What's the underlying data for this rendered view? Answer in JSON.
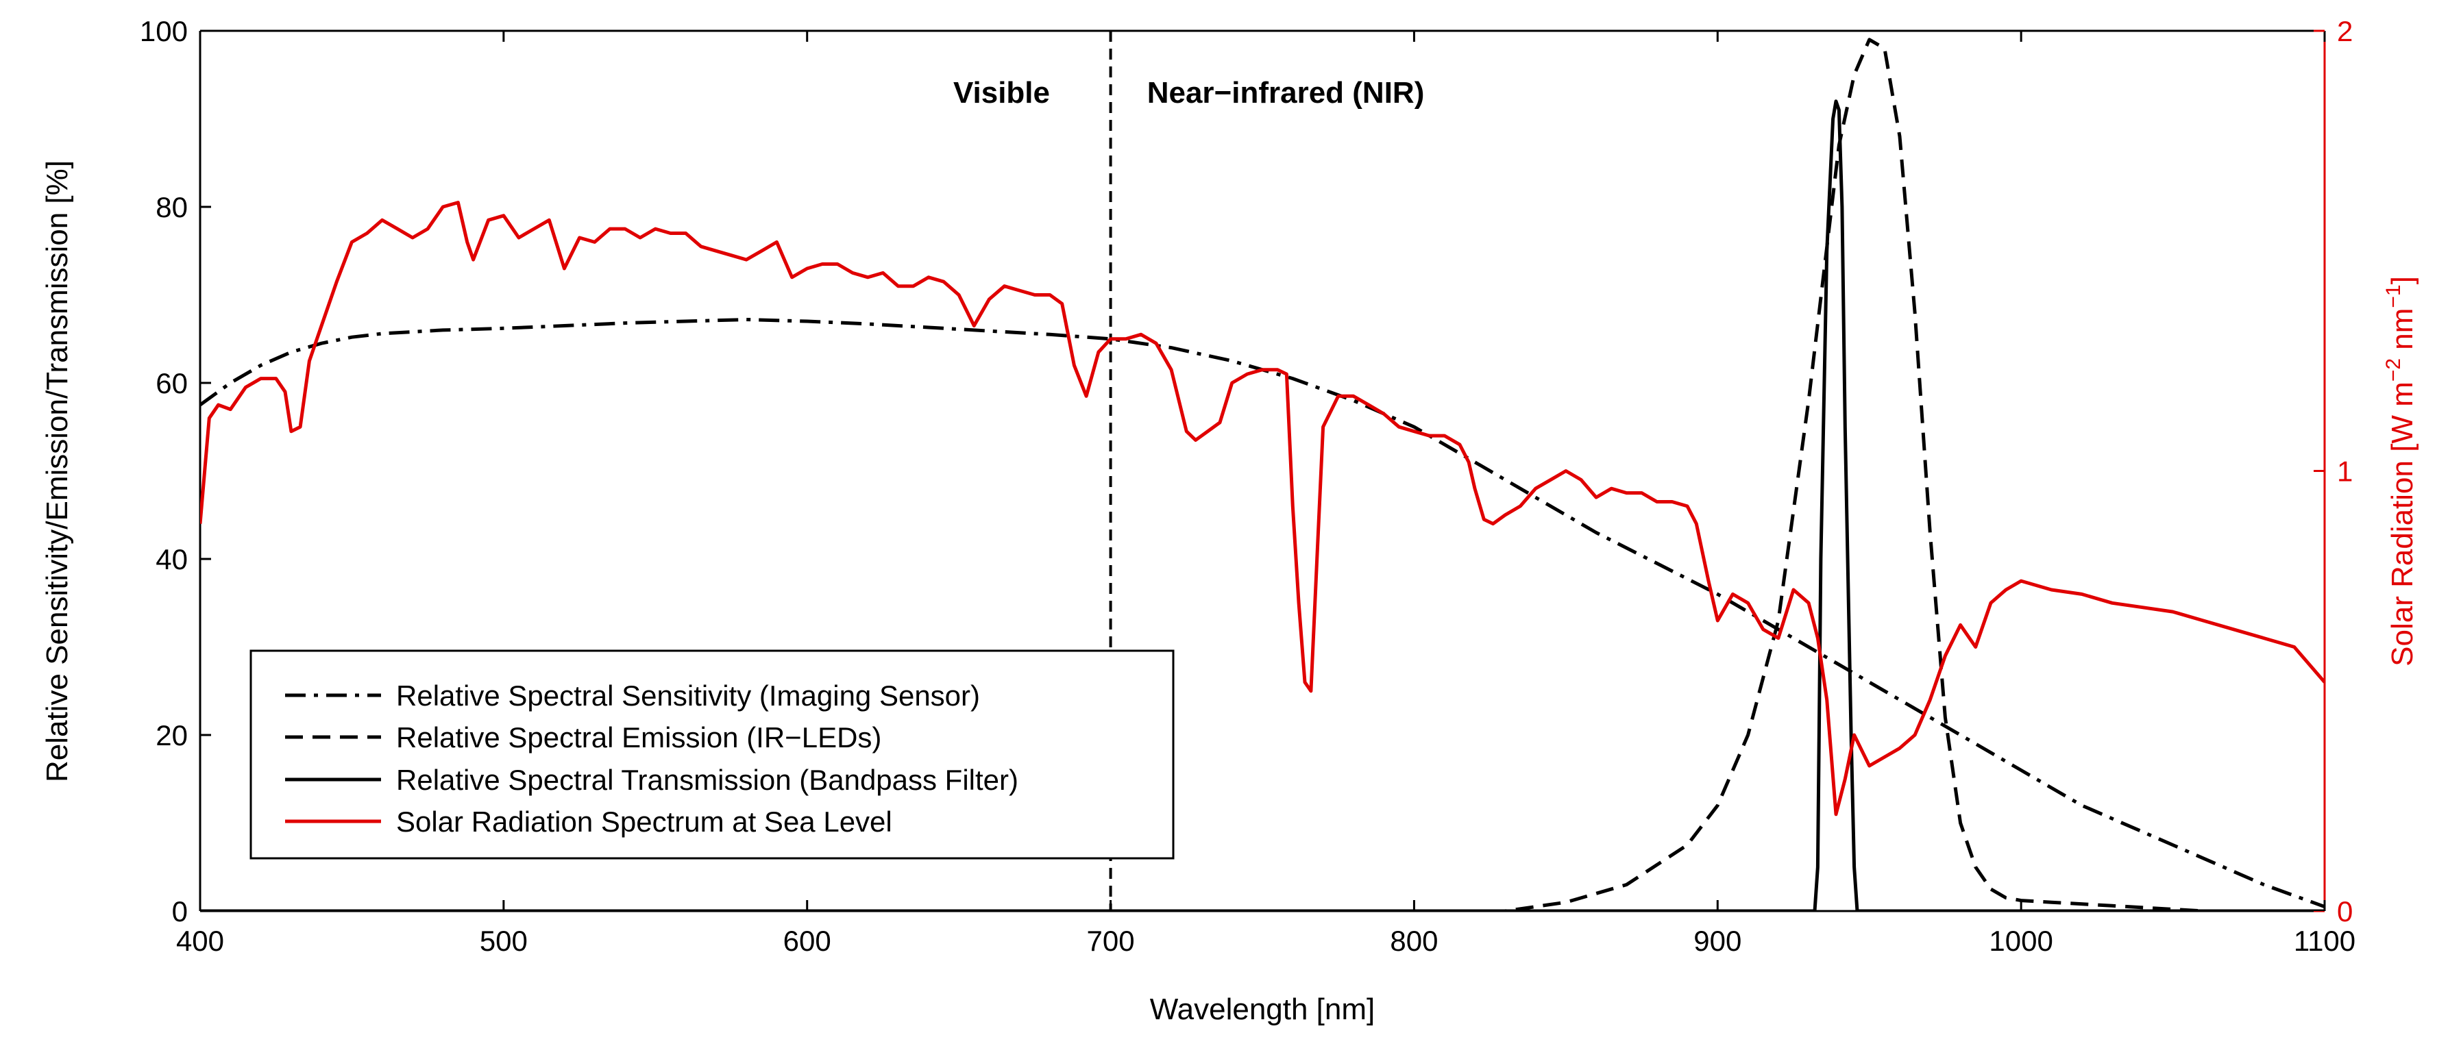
{
  "chart_data": {
    "type": "line",
    "title": "",
    "xlabel": "Wavelength [nm]",
    "ylabel": "Relative Sensitivity/Emission/Transmission [%]",
    "y2label": "Solar Radiation [W m-2 nm-1]",
    "y2label_parts": {
      "base": "Solar Radiation [W m",
      "sup1": "−2",
      "mid": " nm",
      "sup2": "−1",
      "end": "]"
    },
    "xlim": [
      400,
      1100
    ],
    "ylim": [
      0,
      100
    ],
    "y2lim": [
      0,
      2
    ],
    "xticks": [
      400,
      500,
      600,
      700,
      800,
      900,
      1000,
      1100
    ],
    "xtick_labels": [
      "400",
      "500",
      "600",
      "700",
      "800",
      "900",
      "1000",
      "1100"
    ],
    "yticks": [
      0,
      20,
      40,
      60,
      80,
      100
    ],
    "ytick_labels": [
      "0",
      "20",
      "40",
      "60",
      "80",
      "100"
    ],
    "y2ticks": [
      0,
      1,
      2
    ],
    "y2tick_labels": [
      "0",
      "1",
      "2"
    ],
    "grid": false,
    "legend_position": "bottom-left",
    "annotations": [
      {
        "text": "Visible",
        "x": 680,
        "y": 93,
        "anchor": "end"
      },
      {
        "text": "Near−infrared (NIR)",
        "x": 712,
        "y": 93,
        "anchor": "start"
      }
    ],
    "vline": {
      "x": 700,
      "style": "dashed"
    },
    "series": [
      {
        "name": "Relative Spectral Sensitivity (Imaging Sensor)",
        "axis": "left",
        "color": "#000000",
        "style": "dashdot",
        "x": [
          400,
          410,
          420,
          430,
          440,
          450,
          460,
          480,
          500,
          520,
          540,
          560,
          580,
          600,
          620,
          640,
          660,
          680,
          700,
          720,
          740,
          760,
          780,
          800,
          820,
          840,
          860,
          880,
          900,
          920,
          940,
          960,
          980,
          1000,
          1020,
          1040,
          1060,
          1080,
          1100
        ],
        "y": [
          57.5,
          60,
          62,
          63.5,
          64.5,
          65.2,
          65.6,
          66,
          66.2,
          66.5,
          66.8,
          67,
          67.2,
          67,
          66.7,
          66.3,
          65.9,
          65.5,
          65,
          64,
          62.5,
          60.5,
          58,
          55,
          51,
          47,
          43,
          39.5,
          36,
          32,
          28,
          24,
          20,
          16,
          12,
          9,
          6,
          3,
          0.5
        ]
      },
      {
        "name": "Relative Spectral Emission (IR−LEDs)",
        "axis": "left",
        "color": "#000000",
        "style": "dashed",
        "x": [
          400,
          830,
          850,
          870,
          890,
          900,
          910,
          920,
          930,
          940,
          945,
          950,
          955,
          960,
          965,
          970,
          975,
          980,
          985,
          990,
          995,
          1000,
          1010,
          1030,
          1050,
          1060
        ],
        "y": [
          0,
          0,
          1,
          3,
          7.5,
          12,
          20,
          33,
          58,
          87,
          95,
          99,
          98,
          88,
          68,
          43,
          22,
          10,
          5,
          2.5,
          1.5,
          1.2,
          1.0,
          0.6,
          0.2,
          0
        ]
      },
      {
        "name": "Relative Spectral Transmission (Bandpass Filter)",
        "axis": "left",
        "color": "#000000",
        "style": "solid",
        "x": [
          400,
          932,
          933,
          934,
          936,
          938,
          939,
          940,
          941,
          942,
          944,
          945,
          946,
          1100
        ],
        "y": [
          0,
          0,
          5,
          40,
          75,
          90,
          92,
          91,
          80,
          55,
          20,
          5,
          0,
          0
        ]
      },
      {
        "name": "Solar Radiation Spectrum at Sea Level",
        "axis": "right",
        "color": "#e00000",
        "style": "solid",
        "x": [
          400,
          403,
          406,
          410,
          415,
          420,
          425,
          428,
          430,
          433,
          436,
          440,
          445,
          450,
          455,
          460,
          465,
          470,
          475,
          480,
          485,
          488,
          490,
          495,
          500,
          505,
          510,
          515,
          520,
          525,
          530,
          535,
          540,
          545,
          550,
          555,
          560,
          565,
          570,
          575,
          580,
          585,
          590,
          595,
          600,
          605,
          610,
          615,
          620,
          625,
          630,
          635,
          640,
          645,
          650,
          655,
          660,
          665,
          670,
          675,
          680,
          684,
          688,
          692,
          696,
          700,
          705,
          710,
          715,
          720,
          725,
          728,
          732,
          736,
          740,
          745,
          750,
          755,
          758,
          760,
          762,
          764,
          766,
          768,
          770,
          775,
          780,
          785,
          790,
          795,
          800,
          805,
          810,
          815,
          818,
          820,
          823,
          826,
          830,
          835,
          840,
          845,
          850,
          855,
          860,
          865,
          870,
          875,
          880,
          885,
          890,
          893,
          897,
          900,
          905,
          910,
          915,
          920,
          925,
          930,
          933,
          936,
          939,
          942,
          945,
          950,
          955,
          960,
          965,
          970,
          975,
          980,
          985,
          990,
          995,
          1000,
          1010,
          1020,
          1030,
          1040,
          1050,
          1060,
          1070,
          1080,
          1090,
          1100
        ],
        "y": [
          0.88,
          1.12,
          1.15,
          1.14,
          1.19,
          1.21,
          1.21,
          1.18,
          1.09,
          1.1,
          1.25,
          1.33,
          1.43,
          1.52,
          1.54,
          1.57,
          1.55,
          1.53,
          1.55,
          1.6,
          1.61,
          1.52,
          1.48,
          1.57,
          1.58,
          1.53,
          1.55,
          1.57,
          1.46,
          1.53,
          1.52,
          1.55,
          1.55,
          1.53,
          1.55,
          1.54,
          1.54,
          1.51,
          1.5,
          1.49,
          1.48,
          1.5,
          1.52,
          1.44,
          1.46,
          1.47,
          1.47,
          1.45,
          1.44,
          1.45,
          1.42,
          1.42,
          1.44,
          1.43,
          1.4,
          1.33,
          1.39,
          1.42,
          1.41,
          1.4,
          1.4,
          1.38,
          1.24,
          1.17,
          1.27,
          1.3,
          1.3,
          1.31,
          1.29,
          1.23,
          1.09,
          1.07,
          1.09,
          1.11,
          1.2,
          1.22,
          1.23,
          1.23,
          1.22,
          0.92,
          0.7,
          0.52,
          0.5,
          0.8,
          1.1,
          1.17,
          1.17,
          1.15,
          1.13,
          1.1,
          1.09,
          1.08,
          1.08,
          1.06,
          1.02,
          0.96,
          0.89,
          0.88,
          0.9,
          0.92,
          0.96,
          0.98,
          1.0,
          0.98,
          0.94,
          0.96,
          0.95,
          0.95,
          0.93,
          0.93,
          0.92,
          0.88,
          0.75,
          0.66,
          0.72,
          0.7,
          0.64,
          0.62,
          0.73,
          0.7,
          0.62,
          0.48,
          0.22,
          0.3,
          0.4,
          0.33,
          0.35,
          0.37,
          0.4,
          0.48,
          0.58,
          0.65,
          0.6,
          0.7,
          0.73,
          0.75,
          0.73,
          0.72,
          0.7,
          0.69,
          0.68,
          0.66,
          0.64,
          0.62,
          0.6,
          0.52
        ]
      }
    ]
  },
  "colors": {
    "axis": "#000000",
    "right_axis": "#e00000",
    "solar": "#e00000"
  }
}
